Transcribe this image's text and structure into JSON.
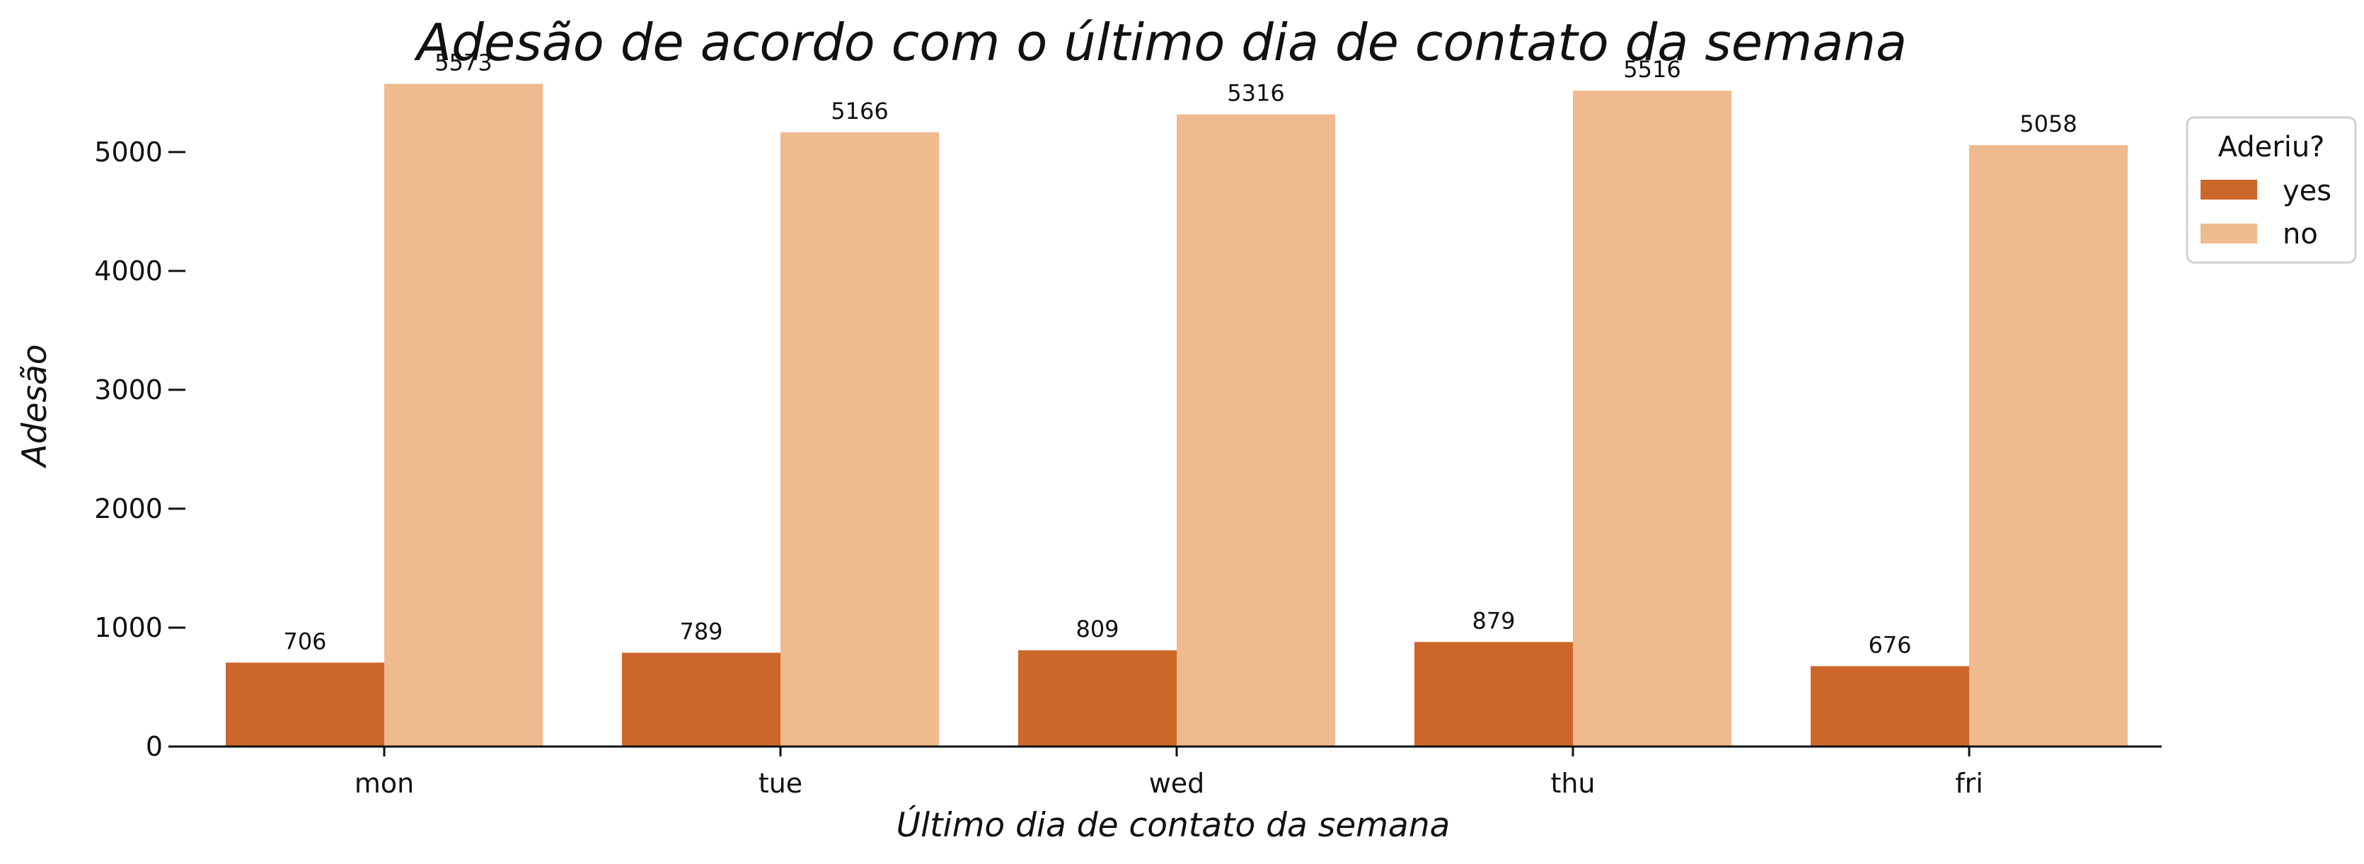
{
  "chart_data": {
    "type": "bar",
    "title": "Adesão de acordo com o último dia de contato da semana",
    "xlabel": "Último dia de contato da semana",
    "ylabel": "Adesão",
    "categories": [
      "mon",
      "tue",
      "wed",
      "thu",
      "fri"
    ],
    "series": [
      {
        "name": "yes",
        "values": [
          706,
          789,
          809,
          879,
          676
        ],
        "color": "#cc6629"
      },
      {
        "name": "no",
        "values": [
          5573,
          5166,
          5316,
          5516,
          5058
        ],
        "color": "#eeba8e"
      }
    ],
    "ylim": [
      0,
      5850
    ],
    "yticks": [
      0,
      1000,
      2000,
      3000,
      4000,
      5000
    ],
    "grid": false,
    "legend": {
      "title": "Aderiu?",
      "placement": "top-right-outside",
      "entries": [
        "yes",
        "no"
      ]
    }
  }
}
